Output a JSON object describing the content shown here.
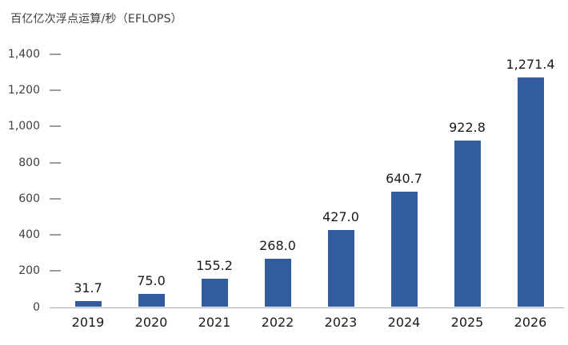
{
  "colors": {
    "bar": "#315d9c",
    "axis_line": "#a8a8a8",
    "tick_dash": "#9d9d9d",
    "tick_label_text": "#404040",
    "data_label_text": "#1a1a1a"
  },
  "chart_data": {
    "type": "bar",
    "title": "百亿亿次浮点运算/秒（EFLOPS）",
    "categories": [
      "2019",
      "2020",
      "2021",
      "2022",
      "2023",
      "2024",
      "2025",
      "2026"
    ],
    "values": [
      31.7,
      75.0,
      155.2,
      268.0,
      427.0,
      640.7,
      922.8,
      1271.4
    ],
    "value_labels": [
      "31.7",
      "75.0",
      "155.2",
      "268.0",
      "427.0",
      "640.7",
      "922.8",
      "1,271.4"
    ],
    "xlabel": "",
    "ylabel": "百亿亿次浮点运算/秒（EFLOPS）",
    "ylim": [
      0,
      1400
    ],
    "yticks": [
      0,
      200,
      400,
      600,
      800,
      1000,
      1200,
      1400
    ],
    "ytick_labels": [
      "0",
      "200",
      "400",
      "600",
      "800",
      "1,000",
      "1,200",
      "1,400"
    ],
    "grid": false,
    "legend": false,
    "bar_color": "#315d9c"
  }
}
